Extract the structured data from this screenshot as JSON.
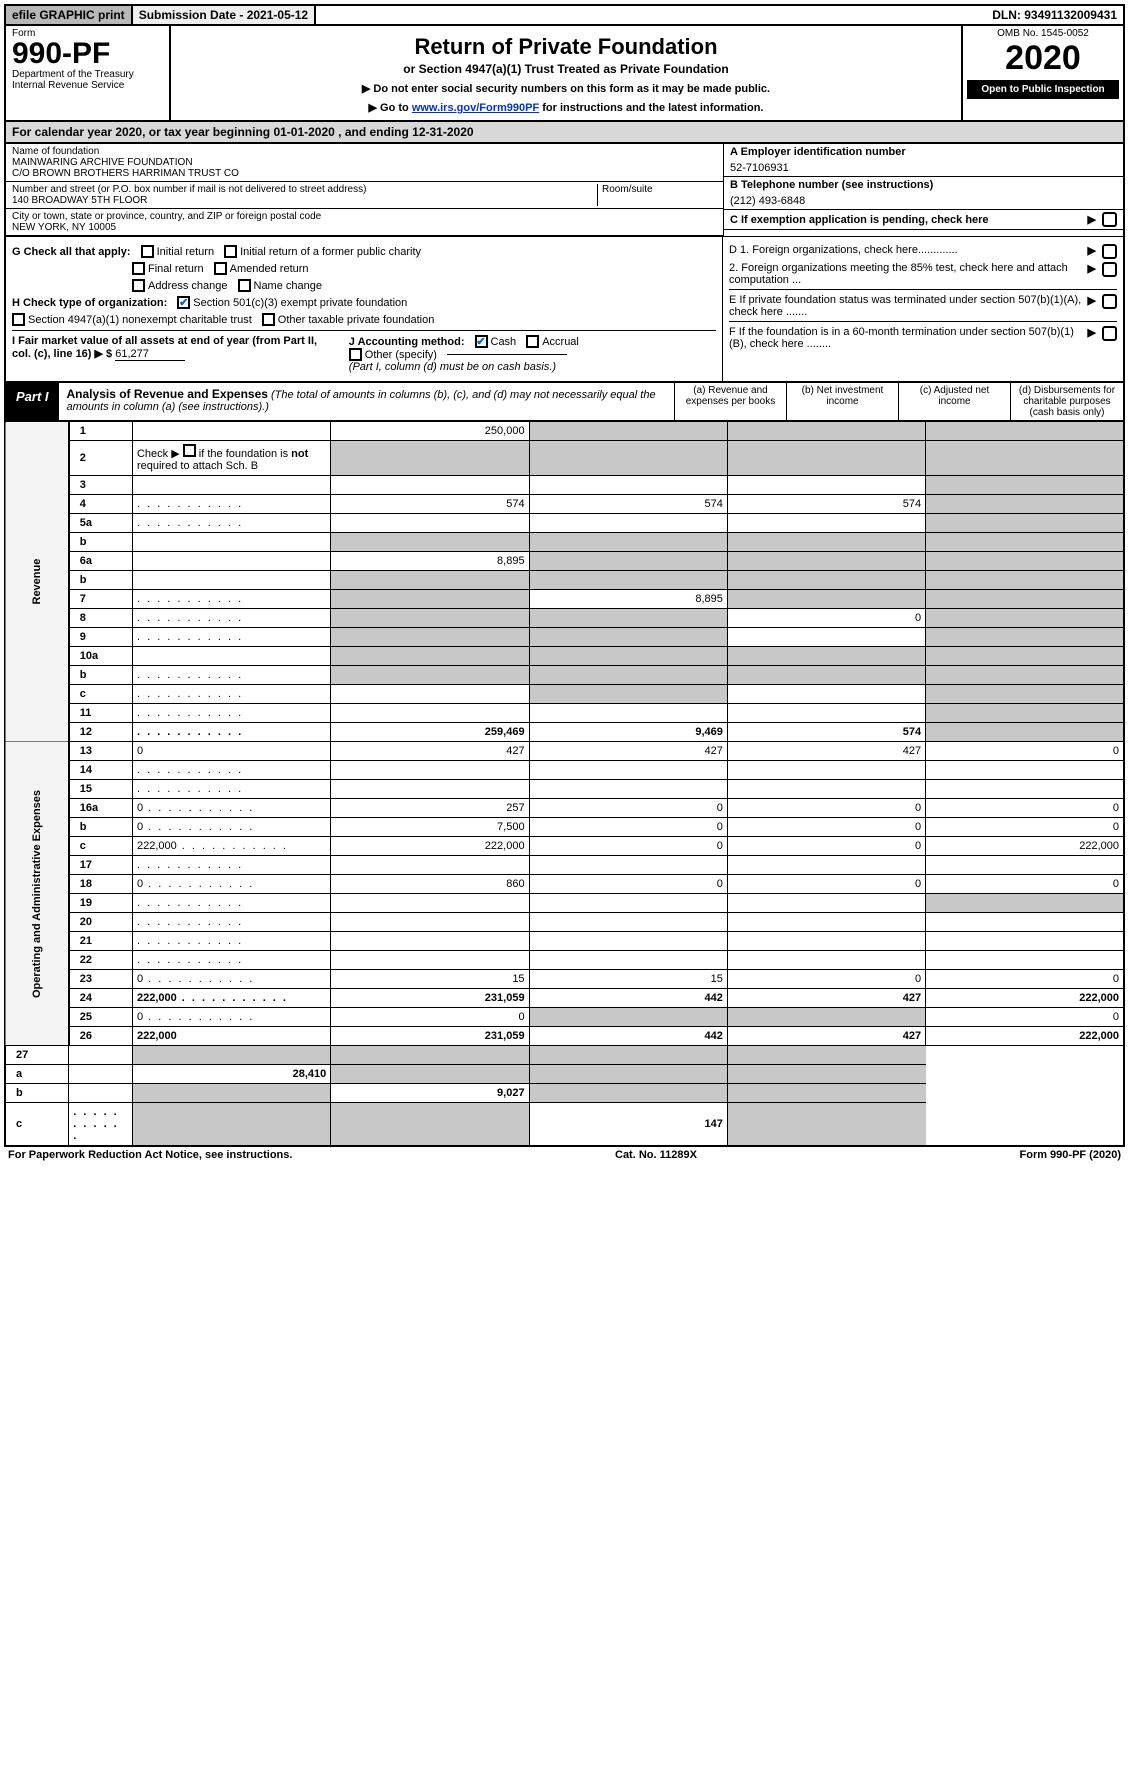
{
  "topbar": {
    "efile": "efile GRAPHIC print",
    "submission": "Submission Date - 2021-05-12",
    "dln": "DLN: 93491132009431"
  },
  "header": {
    "form_word": "Form",
    "form_no": "990-PF",
    "dept": "Department of the Treasury",
    "irs": "Internal Revenue Service",
    "title": "Return of Private Foundation",
    "subtitle": "or Section 4947(a)(1) Trust Treated as Private Foundation",
    "note1": "▶ Do not enter social security numbers on this form as it may be made public.",
    "note2_pre": "▶ Go to ",
    "note2_link": "www.irs.gov/Form990PF",
    "note2_post": " for instructions and the latest information.",
    "omb": "OMB No. 1545-0052",
    "year": "2020",
    "open": "Open to Public Inspection"
  },
  "calyear": "For calendar year 2020, or tax year beginning 01-01-2020                 , and ending 12-31-2020",
  "entity": {
    "name_lbl": "Name of foundation",
    "name1": "MAINWARING ARCHIVE FOUNDATION",
    "name2": "C/O BROWN BROTHERS HARRIMAN TRUST CO",
    "addr_lbl": "Number and street (or P.O. box number if mail is not delivered to street address)",
    "addr": "140 BROADWAY 5TH FLOOR",
    "room_lbl": "Room/suite",
    "city_lbl": "City or town, state or province, country, and ZIP or foreign postal code",
    "city": "NEW YORK, NY  10005",
    "a_lbl": "A Employer identification number",
    "a_val": "52-7106931",
    "b_lbl": "B Telephone number (see instructions)",
    "b_val": "(212) 493-6848",
    "c_lbl": "C If exemption application is pending, check here"
  },
  "checks": {
    "g_lbl": "G Check all that apply:",
    "g": [
      "Initial return",
      "Initial return of a former public charity",
      "Final return",
      "Amended return",
      "Address change",
      "Name change"
    ],
    "h_lbl": "H Check type of organization:",
    "h1": "Section 501(c)(3) exempt private foundation",
    "h2": "Section 4947(a)(1) nonexempt charitable trust",
    "h3": "Other taxable private foundation",
    "i_lbl": "I Fair market value of all assets at end of year (from Part II, col. (c), line 16) ▶ $",
    "i_val": "61,277",
    "j_lbl": "J Accounting method:",
    "j_cash": "Cash",
    "j_accr": "Accrual",
    "j_other": "Other (specify)",
    "j_note": "(Part I, column (d) must be on cash basis.)",
    "d1": "D 1. Foreign organizations, check here.............",
    "d2": "2. Foreign organizations meeting the 85% test, check here and attach computation ...",
    "e": "E  If private foundation status was terminated under section 507(b)(1)(A), check here .......",
    "f": "F  If the foundation is in a 60-month termination under section 507(b)(1)(B), check here ........"
  },
  "part1": {
    "label": "Part I",
    "title": "Analysis of Revenue and Expenses",
    "note": "(The total of amounts in columns (b), (c), and (d) may not necessarily equal the amounts in column (a) (see instructions).)",
    "cols": {
      "a": "(a)    Revenue and expenses per books",
      "b": "(b)   Net investment income",
      "c": "(c)   Adjusted net income",
      "d": "(d)   Disbursements for charitable purposes (cash basis only)"
    }
  },
  "sides": {
    "rev": "Revenue",
    "exp": "Operating and Administrative Expenses"
  },
  "rows": [
    {
      "n": "1",
      "d": "",
      "a": "250,000",
      "b": "",
      "c": "",
      "gb": true,
      "gc": true,
      "gd": true
    },
    {
      "n": "2",
      "d": "",
      "a": "",
      "b": "",
      "c": "",
      "gb": true,
      "gc": true,
      "gd": true,
      "ga": true,
      "html": true
    },
    {
      "n": "3",
      "d": "",
      "a": "",
      "b": "",
      "c": "",
      "gd": true
    },
    {
      "n": "4",
      "d": "",
      "a": "574",
      "b": "574",
      "c": "574",
      "gd": true,
      "dots": true
    },
    {
      "n": "5a",
      "d": "",
      "a": "",
      "b": "",
      "c": "",
      "gd": true,
      "dots": true
    },
    {
      "n": "b",
      "d": "",
      "a": "",
      "b": "",
      "c": "",
      "gb": true,
      "gc": true,
      "gd": true,
      "ga": true
    },
    {
      "n": "6a",
      "d": "",
      "a": "8,895",
      "b": "",
      "c": "",
      "gb": true,
      "gc": true,
      "gd": true
    },
    {
      "n": "b",
      "d": "",
      "a": "",
      "b": "",
      "c": "",
      "gb": true,
      "gc": true,
      "gd": true,
      "ga": true
    },
    {
      "n": "7",
      "d": "",
      "a": "",
      "b": "8,895",
      "c": "",
      "ga": true,
      "gc": true,
      "gd": true,
      "dots": true
    },
    {
      "n": "8",
      "d": "",
      "a": "",
      "b": "",
      "c": "0",
      "ga": true,
      "gb": true,
      "gd": true,
      "dots": true
    },
    {
      "n": "9",
      "d": "",
      "a": "",
      "b": "",
      "c": "",
      "ga": true,
      "gb": true,
      "gd": true,
      "dots": true
    },
    {
      "n": "10a",
      "d": "",
      "a": "",
      "b": "",
      "c": "",
      "ga": true,
      "gb": true,
      "gc": true,
      "gd": true
    },
    {
      "n": "b",
      "d": "",
      "a": "",
      "b": "",
      "c": "",
      "ga": true,
      "gb": true,
      "gc": true,
      "gd": true,
      "dots": true
    },
    {
      "n": "c",
      "d": "",
      "a": "",
      "b": "",
      "c": "",
      "gb": true,
      "gd": true,
      "dots": true
    },
    {
      "n": "11",
      "d": "",
      "a": "",
      "b": "",
      "c": "",
      "gd": true,
      "dots": true
    },
    {
      "n": "12",
      "d": "",
      "a": "259,469",
      "b": "9,469",
      "c": "574",
      "gd": true,
      "bold": true,
      "dots": true
    }
  ],
  "exp_rows": [
    {
      "n": "13",
      "d": "0",
      "a": "427",
      "b": "427",
      "c": "427"
    },
    {
      "n": "14",
      "d": "",
      "a": "",
      "b": "",
      "c": "",
      "dots": true
    },
    {
      "n": "15",
      "d": "",
      "a": "",
      "b": "",
      "c": "",
      "dots": true
    },
    {
      "n": "16a",
      "d": "0",
      "a": "257",
      "b": "0",
      "c": "0",
      "dots": true
    },
    {
      "n": "b",
      "d": "0",
      "a": "7,500",
      "b": "0",
      "c": "0",
      "dots": true
    },
    {
      "n": "c",
      "d": "222,000",
      "a": "222,000",
      "b": "0",
      "c": "0",
      "dots": true
    },
    {
      "n": "17",
      "d": "",
      "a": "",
      "b": "",
      "c": "",
      "dots": true
    },
    {
      "n": "18",
      "d": "0",
      "a": "860",
      "b": "0",
      "c": "0",
      "dots": true
    },
    {
      "n": "19",
      "d": "",
      "a": "",
      "b": "",
      "c": "",
      "gd": true,
      "dots": true
    },
    {
      "n": "20",
      "d": "",
      "a": "",
      "b": "",
      "c": "",
      "dots": true
    },
    {
      "n": "21",
      "d": "",
      "a": "",
      "b": "",
      "c": "",
      "dots": true
    },
    {
      "n": "22",
      "d": "",
      "a": "",
      "b": "",
      "c": "",
      "dots": true
    },
    {
      "n": "23",
      "d": "0",
      "a": "15",
      "b": "15",
      "c": "0",
      "dots": true
    },
    {
      "n": "24",
      "d": "222,000",
      "a": "231,059",
      "b": "442",
      "c": "427",
      "bold": true,
      "dots": true
    },
    {
      "n": "25",
      "d": "0",
      "a": "0",
      "b": "",
      "c": "",
      "gb": true,
      "gc": true,
      "dots": true
    },
    {
      "n": "26",
      "d": "222,000",
      "a": "231,059",
      "b": "442",
      "c": "427",
      "bold": true
    }
  ],
  "final_rows": [
    {
      "n": "27",
      "d": "",
      "a": "",
      "b": "",
      "c": "",
      "ga": true,
      "gb": true,
      "gc": true,
      "gd": true
    },
    {
      "n": "a",
      "d": "",
      "a": "28,410",
      "b": "",
      "c": "",
      "gb": true,
      "gc": true,
      "gd": true,
      "bold": true
    },
    {
      "n": "b",
      "d": "",
      "a": "",
      "b": "9,027",
      "c": "",
      "ga": true,
      "gc": true,
      "gd": true,
      "bold": true
    },
    {
      "n": "c",
      "d": "",
      "a": "",
      "b": "",
      "c": "147",
      "ga": true,
      "gb": true,
      "gd": true,
      "bold": true,
      "dots": true
    }
  ],
  "footer": {
    "left": "For Paperwork Reduction Act Notice, see instructions.",
    "mid": "Cat. No. 11289X",
    "right": "Form 990-PF (2020)"
  }
}
